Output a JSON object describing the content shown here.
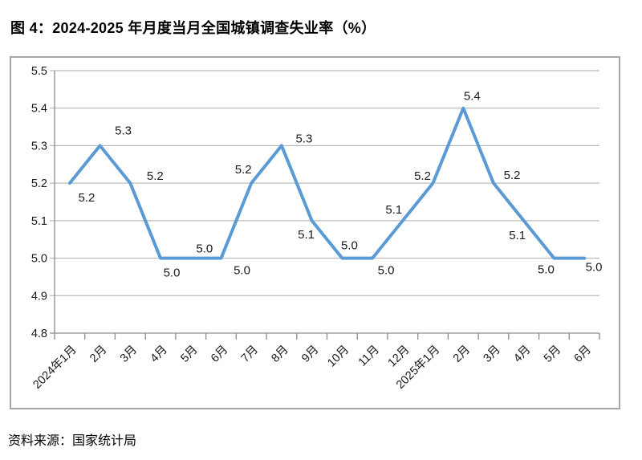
{
  "title": "图 4：2024-2025 年月度当月全国城镇调查失业率（%）",
  "source": "资料来源：国家统计局",
  "colors": {
    "line": "#5b9bd5",
    "gridline": "#ababab",
    "axis": "#8c8c8c",
    "border": "#a6a6a6",
    "label_text": "#1a1a1a"
  },
  "chart_data": {
    "type": "line",
    "title": "图 4：2024-2025 年月度当月全国城镇调查失业率（%）",
    "categories": [
      "2024年1月",
      "2月",
      "3月",
      "4月",
      "5月",
      "6月",
      "7月",
      "8月",
      "9月",
      "10月",
      "11月",
      "12月",
      "2025年1月",
      "2月",
      "3月",
      "4月",
      "5月",
      "6月"
    ],
    "values": [
      5.2,
      5.3,
      5.2,
      5.0,
      5.0,
      5.0,
      5.2,
      5.3,
      5.1,
      5.0,
      5.0,
      5.1,
      5.2,
      5.4,
      5.2,
      5.1,
      5.0,
      5.0
    ],
    "data_labels": [
      "5.2",
      "5.3",
      "5.2",
      "5.0",
      "5.0",
      "5.0",
      "5.2",
      "5.3",
      "5.1",
      "5.0",
      "5.0",
      "5.1",
      "5.2",
      "5.4",
      "5.2",
      "5.1",
      "5.0",
      "5.0"
    ],
    "xlabel": "",
    "ylabel": "",
    "ylim": [
      4.8,
      5.5
    ],
    "y_step": 0.1,
    "y_tick_labels": [
      "4.8",
      "4.9",
      "5.0",
      "5.1",
      "5.2",
      "5.3",
      "5.4",
      "5.5"
    ],
    "grid": true,
    "legend": "none",
    "x_tick_rotation": 45,
    "source": "资料来源：国家统计局"
  }
}
